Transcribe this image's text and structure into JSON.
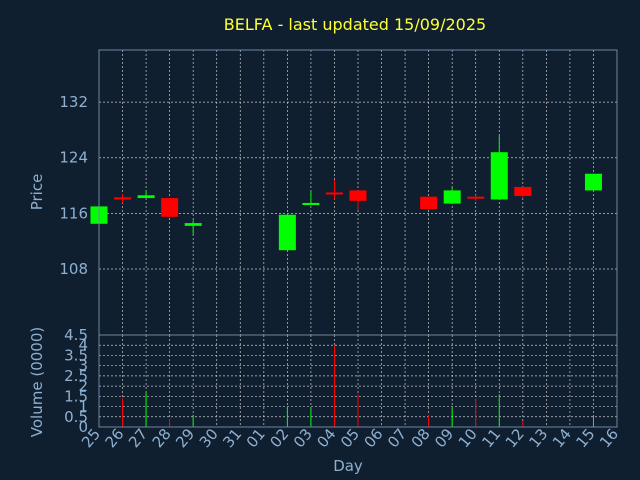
{
  "chart_data": [
    {
      "type": "candlestick",
      "title": "BELFA - last updated 15/09/2025",
      "ylabel": "Price",
      "ylim": [
        98.5,
        139.5
      ],
      "yticks": [
        108,
        116,
        124,
        132
      ],
      "grid": true,
      "up_color": "#00ff00",
      "down_color": "#ff0000",
      "categories": [
        "25",
        "26",
        "27",
        "28",
        "29",
        "30",
        "31",
        "01",
        "02",
        "03",
        "04",
        "05",
        "06",
        "07",
        "08",
        "09",
        "10",
        "11",
        "12",
        "13",
        "14",
        "15",
        "16"
      ],
      "candles": [
        {
          "x": "25",
          "open": 114.5,
          "high": 117.0,
          "low": 114.5,
          "close": 117.0
        },
        {
          "x": "26",
          "open": 118.3,
          "high": 118.8,
          "low": 117.5,
          "close": 118.0
        },
        {
          "x": "27",
          "open": 118.2,
          "high": 119.3,
          "low": 118.2,
          "close": 118.6
        },
        {
          "x": "28",
          "open": 118.2,
          "high": 118.2,
          "low": 115.5,
          "close": 115.5
        },
        {
          "x": "29",
          "open": 114.2,
          "high": 115.0,
          "low": 112.8,
          "close": 114.6
        },
        {
          "x": "02",
          "open": 110.7,
          "high": 115.8,
          "low": 110.7,
          "close": 115.8
        },
        {
          "x": "03",
          "open": 117.2,
          "high": 119.2,
          "low": 117.2,
          "close": 117.5
        },
        {
          "x": "04",
          "open": 119.0,
          "high": 120.8,
          "low": 118.0,
          "close": 118.8
        },
        {
          "x": "05",
          "open": 119.3,
          "high": 119.3,
          "low": 116.5,
          "close": 117.8
        },
        {
          "x": "08",
          "open": 118.4,
          "high": 118.4,
          "low": 116.5,
          "close": 116.6
        },
        {
          "x": "09",
          "open": 117.4,
          "high": 119.8,
          "low": 117.4,
          "close": 119.3
        },
        {
          "x": "10",
          "open": 118.4,
          "high": 118.6,
          "low": 117.8,
          "close": 118.2
        },
        {
          "x": "11",
          "open": 118.0,
          "high": 127.2,
          "low": 118.0,
          "close": 124.8
        },
        {
          "x": "12",
          "open": 119.8,
          "high": 119.8,
          "low": 118.3,
          "close": 118.5
        },
        {
          "x": "15",
          "open": 119.3,
          "high": 121.7,
          "low": 119.3,
          "close": 121.7
        }
      ]
    },
    {
      "type": "bar",
      "ylabel": "Volume (0000)",
      "xlabel": "Day",
      "ylim": [
        0,
        4.5
      ],
      "yticks": [
        "0",
        "0.5",
        "1",
        "1.5",
        "2",
        "2.5",
        "3",
        "3.5",
        "4",
        "4.5"
      ],
      "grid": true,
      "categories": [
        "25",
        "26",
        "27",
        "28",
        "29",
        "30",
        "31",
        "01",
        "02",
        "03",
        "04",
        "05",
        "06",
        "07",
        "08",
        "09",
        "10",
        "11",
        "12",
        "13",
        "14",
        "15",
        "16"
      ],
      "bars": [
        {
          "x": "25",
          "value": 0.2,
          "color": "#00ff00"
        },
        {
          "x": "26",
          "value": 1.4,
          "color": "#ff0000"
        },
        {
          "x": "27",
          "value": 1.7,
          "color": "#00ff00"
        },
        {
          "x": "28",
          "value": 0.4,
          "color": "#ff0000"
        },
        {
          "x": "29",
          "value": 0.6,
          "color": "#00ff00"
        },
        {
          "x": "02",
          "value": 1.0,
          "color": "#00ff00"
        },
        {
          "x": "03",
          "value": 0.9,
          "color": "#00ff00"
        },
        {
          "x": "04",
          "value": 4.0,
          "color": "#ff0000"
        },
        {
          "x": "05",
          "value": 1.6,
          "color": "#ff0000"
        },
        {
          "x": "08",
          "value": 0.6,
          "color": "#ff0000"
        },
        {
          "x": "09",
          "value": 0.9,
          "color": "#00ff00"
        },
        {
          "x": "10",
          "value": 1.4,
          "color": "#ff0000"
        },
        {
          "x": "11",
          "value": 1.6,
          "color": "#00ff00"
        },
        {
          "x": "12",
          "value": 0.3,
          "color": "#ff0000"
        },
        {
          "x": "15",
          "value": 0.5,
          "color": "#00ff00"
        }
      ]
    }
  ]
}
